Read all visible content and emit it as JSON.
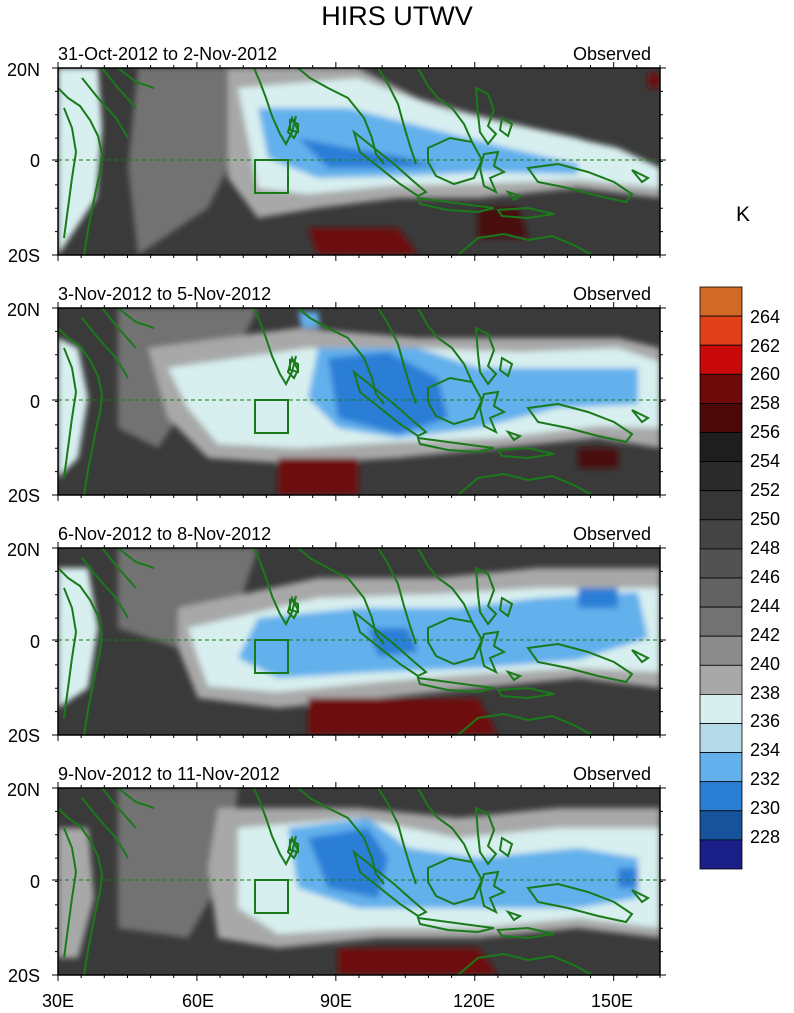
{
  "title": "HIRS UTWV",
  "unit": "K",
  "panels": [
    {
      "date_range": "31-Oct-2012 to 2-Nov-2012",
      "label": "Observed"
    },
    {
      "date_range": "3-Nov-2012 to 5-Nov-2012",
      "label": "Observed"
    },
    {
      "date_range": "6-Nov-2012 to 8-Nov-2012",
      "label": "Observed"
    },
    {
      "date_range": "9-Nov-2012 to 11-Nov-2012",
      "label": "Observed"
    }
  ],
  "lat_ticks": [
    "20N",
    "0",
    "20S"
  ],
  "lon_ticks": [
    "30E",
    "60E",
    "90E",
    "120E",
    "150E"
  ],
  "colorbar": {
    "levels": [
      "264",
      "262",
      "260",
      "258",
      "256",
      "254",
      "252",
      "250",
      "248",
      "246",
      "244",
      "242",
      "240",
      "238",
      "236",
      "234",
      "232",
      "230",
      "228"
    ],
    "colors": [
      "#d06a24",
      "#e0401a",
      "#c80a0a",
      "#6e0a0a",
      "#4a0808",
      "#1e1e1e",
      "#2a2a2a",
      "#363636",
      "#444444",
      "#525252",
      "#626262",
      "#727272",
      "#8c8c8c",
      "#a8a8a8",
      "#d8efef",
      "#b4dae8",
      "#62b0ec",
      "#2a7ed6",
      "#17539a",
      "#1a1f88"
    ]
  },
  "map_colors": {
    "coast": "#1a7a1a",
    "land": "#1a7a1a"
  }
}
